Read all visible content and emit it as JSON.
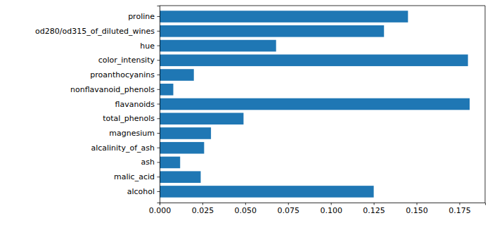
{
  "chart_data": {
    "type": "bar",
    "orientation": "horizontal",
    "categories": [
      "alcohol",
      "malic_acid",
      "ash",
      "alcalinity_of_ash",
      "magnesium",
      "total_phenols",
      "flavanoids",
      "nonflavanoid_phenols",
      "proanthocyanins",
      "color_intensity",
      "hue",
      "od280/od315_of_diluted_wines",
      "proline"
    ],
    "values": [
      0.125,
      0.024,
      0.012,
      0.026,
      0.03,
      0.049,
      0.181,
      0.008,
      0.02,
      0.18,
      0.068,
      0.131,
      0.145
    ],
    "color": "#1f77b4",
    "xlim": [
      0,
      0.19
    ],
    "xticks": [
      {
        "value": 0,
        "label": "0.000"
      },
      {
        "value": 0.025,
        "label": "0.025"
      },
      {
        "value": 0.05,
        "label": "0.050"
      },
      {
        "value": 0.075,
        "label": "0.075"
      },
      {
        "value": 0.1,
        "label": "0.100"
      },
      {
        "value": 0.125,
        "label": "0.125"
      },
      {
        "value": 0.15,
        "label": "0.150"
      },
      {
        "value": 0.175,
        "label": "0.175"
      }
    ],
    "grid": false
  }
}
